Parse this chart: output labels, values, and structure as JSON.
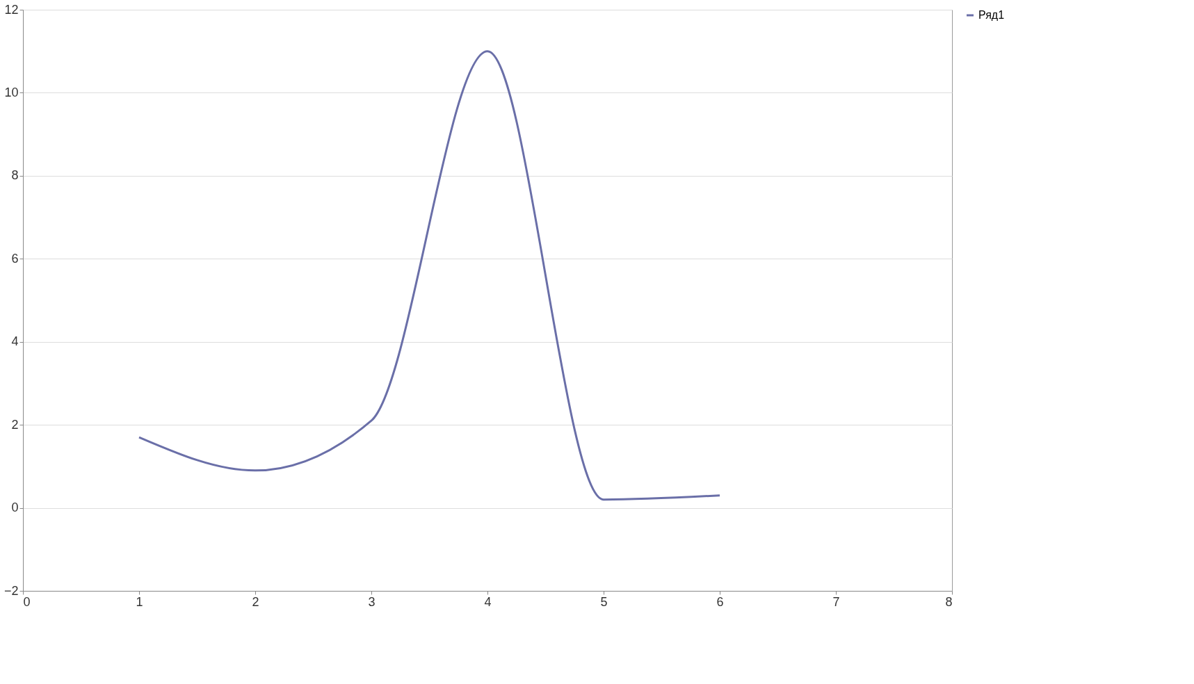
{
  "chart_data": {
    "type": "line",
    "x": [
      1,
      2,
      3,
      4,
      5,
      6
    ],
    "series": [
      {
        "name": "Ряд1",
        "color": "#6a6fa8",
        "values": [
          1.7,
          0.9,
          2.1,
          11.0,
          0.2,
          0.3
        ]
      }
    ],
    "xlim": [
      0,
      8
    ],
    "xticks": [
      0,
      1,
      2,
      3,
      4,
      5,
      6,
      7,
      8
    ],
    "ylim": [
      -2,
      12
    ],
    "yticks": [
      -2,
      0,
      2,
      4,
      6,
      8,
      10,
      12
    ],
    "grid": "y",
    "legend": "right",
    "marker": "none",
    "line_style": "solid"
  }
}
